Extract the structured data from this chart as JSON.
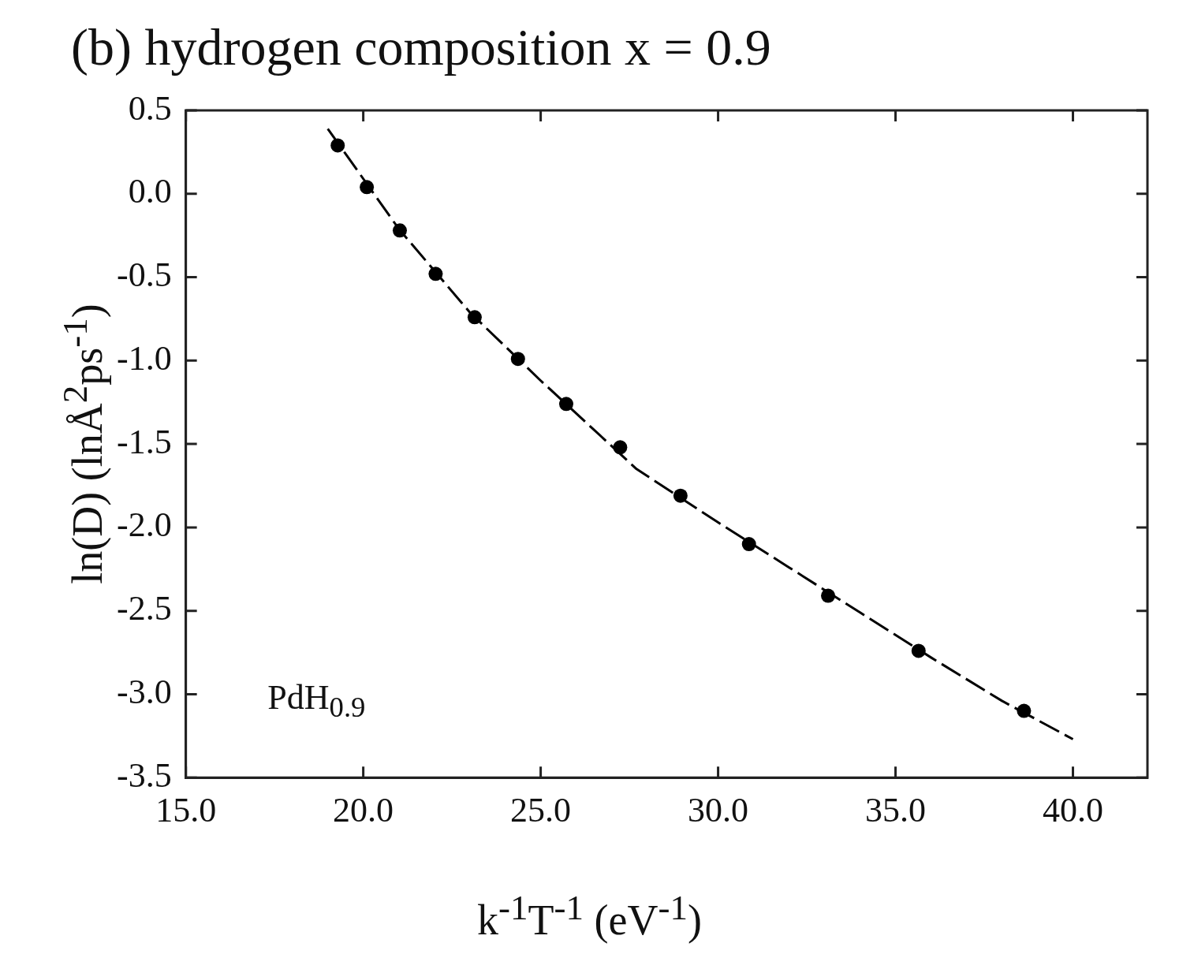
{
  "chart_data": {
    "type": "scatter",
    "title": "(b) hydrogen composition x = 0.9",
    "xlabel": "k$^{-1}$T$^{-1}$ (eV$^{-1}$)",
    "ylabel": "ln(D) (lnÅ$^{2}$ps$^{-1}$)",
    "annotations": [
      "PdH$_{0.9}$"
    ],
    "x": [
      19.28,
      20.1,
      21.03,
      22.04,
      23.14,
      24.36,
      25.72,
      27.24,
      28.94,
      30.87,
      33.1,
      35.65,
      38.62
    ],
    "series": [
      {
        "type": "scatter",
        "color": "#000000",
        "marker": "circle",
        "values": [
          0.29,
          0.04,
          -0.22,
          -0.48,
          -0.74,
          -0.99,
          -1.26,
          -1.52,
          -1.81,
          -2.1,
          -2.41,
          -2.74,
          -3.1
        ]
      },
      {
        "type": "line",
        "color": "#000000",
        "marker": "none",
        "line_style": "dashed",
        "x": [
          19.0,
          21.0,
          23.0,
          25.0,
          27.7,
          30.0,
          32.0,
          34.0,
          36.0,
          38.0,
          40.0
        ],
        "values": [
          0.39,
          -0.21,
          -0.71,
          -1.12,
          -1.65,
          -1.97,
          -2.24,
          -2.51,
          -2.78,
          -3.04,
          -3.27
        ]
      }
    ],
    "xlim": [
      15,
      42.1
    ],
    "ylim": [
      -3.5,
      0.5
    ],
    "xticks": [
      {
        "value": 15,
        "label": "15.0"
      },
      {
        "value": 20,
        "label": "20.0"
      },
      {
        "value": 25,
        "label": "25.0"
      },
      {
        "value": 30,
        "label": "30.0"
      },
      {
        "value": 35,
        "label": "35.0"
      },
      {
        "value": 40,
        "label": "40.0"
      }
    ],
    "yticks": [
      0.5,
      {
        "value": 0,
        "label": "0.0"
      },
      -0.5,
      {
        "value": -1,
        "label": "-1.0"
      },
      -1.5,
      {
        "value": -2,
        "label": "-2.0"
      },
      -2.5,
      {
        "value": -3,
        "label": "-3.0"
      },
      -3.5
    ],
    "grid": false,
    "legend": false
  }
}
